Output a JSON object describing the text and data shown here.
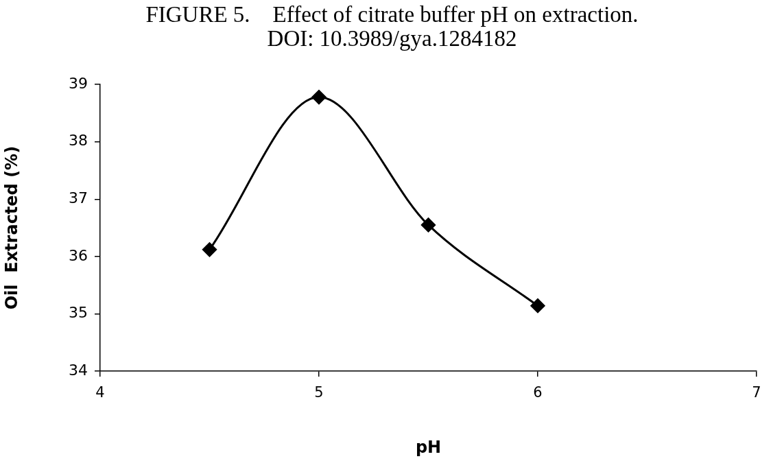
{
  "chart_data": {
    "type": "line",
    "title": "FIGURE 5.    Effect of citrate buffer pH on extraction.",
    "subtitle": "DOI: 10.3989/gya.1284182",
    "xlabel": "pH",
    "ylabel": "Oil  Extracted (%)",
    "x": [
      4.5,
      5,
      5.5,
      6
    ],
    "series": [
      {
        "color": "#000000",
        "values": [
          36.12,
          38.78,
          36.55,
          35.14
        ]
      }
    ],
    "xlim": [
      4,
      7
    ],
    "xticks": [
      4,
      5,
      6,
      7
    ],
    "ylim": [
      34,
      39
    ],
    "yticks": [
      34,
      35,
      36,
      37,
      38,
      39
    ],
    "grid": false,
    "legend": false,
    "marker": "diamond",
    "line_style": "solid"
  }
}
